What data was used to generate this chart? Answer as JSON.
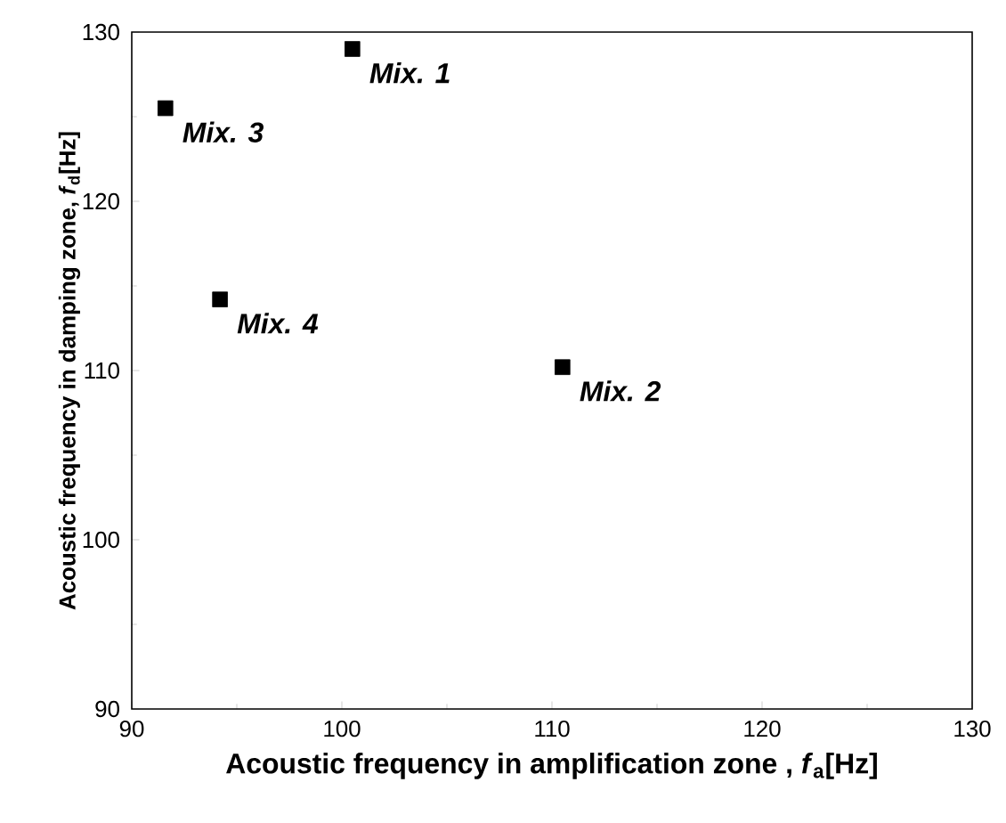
{
  "chart_data": {
    "type": "scatter",
    "xlabel": "Acoustic frequency in amplification zone , *f*$_{a}$[Hz]",
    "ylabel": "Acoustic frequency  in damping zone, *f*$_{d}$[Hz]",
    "x": [
      91.6,
      94.2,
      100.5,
      110.5
    ],
    "series": [
      {
        "color": "#000000",
        "values": [
          125.5,
          114.2,
          129.0,
          110.2
        ]
      }
    ],
    "annotations": [
      {
        "text": "Mix. 3",
        "x": 91.6,
        "y": 125.5
      },
      {
        "text": "Mix. 4",
        "x": 94.2,
        "y": 114.2
      },
      {
        "text": "Mix. 1",
        "x": 100.5,
        "y": 129.0
      },
      {
        "text": "Mix. 2",
        "x": 110.5,
        "y": 110.2
      }
    ],
    "xlim": [
      90,
      130
    ],
    "ylim": [
      90,
      130
    ],
    "xticks": [
      90,
      100,
      110,
      120,
      130
    ],
    "yticks": [
      90,
      100,
      110,
      120,
      130
    ],
    "marker": "square",
    "grid": false
  }
}
